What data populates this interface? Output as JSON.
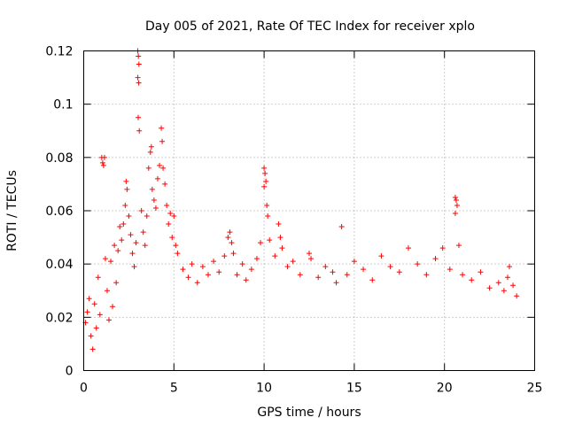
{
  "chart_data": {
    "type": "scatter",
    "title": "Day 005 of 2021, Rate Of TEC Index for receiver xplo",
    "xlabel": "GPS time / hours",
    "ylabel": "ROTI / TECUs",
    "xlim": [
      0,
      25
    ],
    "ylim": [
      0,
      0.12
    ],
    "xticks": [
      0,
      5,
      10,
      15,
      20,
      25
    ],
    "xtick_labels": [
      "0",
      "5",
      "10",
      "15",
      "20",
      "25"
    ],
    "yticks": [
      0,
      0.02,
      0.04,
      0.06,
      0.08,
      0.1,
      0.12
    ],
    "ytick_labels": [
      "0",
      "0.02",
      "0.04",
      "0.06",
      "0.08",
      "0.1",
      "0.12"
    ],
    "grid": true,
    "marker": "+",
    "color": "#ff0000",
    "series": [
      {
        "name": "",
        "points": [
          [
            0.1,
            0.018
          ],
          [
            0.2,
            0.022
          ],
          [
            0.3,
            0.027
          ],
          [
            0.4,
            0.013
          ],
          [
            0.5,
            0.008
          ],
          [
            0.6,
            0.025
          ],
          [
            0.7,
            0.016
          ],
          [
            0.8,
            0.035
          ],
          [
            0.9,
            0.021
          ],
          [
            1.0,
            0.08
          ],
          [
            1.05,
            0.078
          ],
          [
            1.1,
            0.077
          ],
          [
            1.15,
            0.08
          ],
          [
            1.2,
            0.042
          ],
          [
            1.3,
            0.03
          ],
          [
            1.4,
            0.019
          ],
          [
            1.5,
            0.041
          ],
          [
            1.6,
            0.024
          ],
          [
            1.7,
            0.047
          ],
          [
            1.8,
            0.033
          ],
          [
            1.9,
            0.045
          ],
          [
            2.0,
            0.054
          ],
          [
            2.1,
            0.049
          ],
          [
            2.2,
            0.055
          ],
          [
            2.3,
            0.062
          ],
          [
            2.35,
            0.071
          ],
          [
            2.4,
            0.068
          ],
          [
            2.5,
            0.058
          ],
          [
            2.6,
            0.051
          ],
          [
            2.7,
            0.044
          ],
          [
            2.8,
            0.039
          ],
          [
            2.9,
            0.048
          ],
          [
            3.0,
            0.12
          ],
          [
            3.03,
            0.118
          ],
          [
            3.06,
            0.115
          ],
          [
            3.0,
            0.11
          ],
          [
            3.05,
            0.108
          ],
          [
            3.02,
            0.095
          ],
          [
            3.08,
            0.09
          ],
          [
            3.2,
            0.06
          ],
          [
            3.3,
            0.052
          ],
          [
            3.4,
            0.047
          ],
          [
            3.5,
            0.058
          ],
          [
            3.6,
            0.076
          ],
          [
            3.7,
            0.082
          ],
          [
            3.75,
            0.084
          ],
          [
            3.8,
            0.068
          ],
          [
            3.9,
            0.064
          ],
          [
            4.0,
            0.061
          ],
          [
            4.1,
            0.072
          ],
          [
            4.2,
            0.077
          ],
          [
            4.3,
            0.091
          ],
          [
            4.35,
            0.086
          ],
          [
            4.4,
            0.076
          ],
          [
            4.5,
            0.07
          ],
          [
            4.6,
            0.062
          ],
          [
            4.7,
            0.055
          ],
          [
            4.8,
            0.059
          ],
          [
            4.9,
            0.05
          ],
          [
            5.0,
            0.058
          ],
          [
            5.1,
            0.047
          ],
          [
            5.2,
            0.044
          ],
          [
            5.5,
            0.038
          ],
          [
            5.8,
            0.035
          ],
          [
            6.0,
            0.04
          ],
          [
            6.3,
            0.033
          ],
          [
            6.6,
            0.039
          ],
          [
            6.9,
            0.036
          ],
          [
            7.2,
            0.041
          ],
          [
            7.5,
            0.037
          ],
          [
            7.8,
            0.043
          ],
          [
            8.0,
            0.05
          ],
          [
            8.1,
            0.052
          ],
          [
            8.2,
            0.048
          ],
          [
            8.3,
            0.044
          ],
          [
            8.5,
            0.036
          ],
          [
            8.8,
            0.04
          ],
          [
            9.0,
            0.034
          ],
          [
            9.3,
            0.038
          ],
          [
            9.6,
            0.042
          ],
          [
            9.8,
            0.048
          ],
          [
            10.0,
            0.076
          ],
          [
            10.05,
            0.074
          ],
          [
            10.1,
            0.071
          ],
          [
            10.0,
            0.069
          ],
          [
            10.15,
            0.062
          ],
          [
            10.2,
            0.058
          ],
          [
            10.3,
            0.049
          ],
          [
            10.6,
            0.043
          ],
          [
            10.8,
            0.055
          ],
          [
            10.9,
            0.05
          ],
          [
            11.0,
            0.046
          ],
          [
            11.3,
            0.039
          ],
          [
            11.6,
            0.041
          ],
          [
            12.0,
            0.036
          ],
          [
            12.5,
            0.044
          ],
          [
            12.6,
            0.042
          ],
          [
            13.0,
            0.035
          ],
          [
            13.4,
            0.039
          ],
          [
            13.8,
            0.037
          ],
          [
            14.0,
            0.033
          ],
          [
            14.3,
            0.054
          ],
          [
            14.6,
            0.036
          ],
          [
            15.0,
            0.041
          ],
          [
            15.5,
            0.038
          ],
          [
            16.0,
            0.034
          ],
          [
            16.5,
            0.043
          ],
          [
            17.0,
            0.039
          ],
          [
            17.5,
            0.037
          ],
          [
            18.0,
            0.046
          ],
          [
            18.5,
            0.04
          ],
          [
            19.0,
            0.036
          ],
          [
            19.5,
            0.042
          ],
          [
            19.9,
            0.046
          ],
          [
            20.3,
            0.038
          ],
          [
            20.6,
            0.065
          ],
          [
            20.65,
            0.064
          ],
          [
            20.7,
            0.062
          ],
          [
            20.6,
            0.059
          ],
          [
            20.8,
            0.047
          ],
          [
            21.0,
            0.036
          ],
          [
            21.5,
            0.034
          ],
          [
            22.0,
            0.037
          ],
          [
            22.5,
            0.031
          ],
          [
            23.0,
            0.033
          ],
          [
            23.3,
            0.03
          ],
          [
            23.5,
            0.035
          ],
          [
            23.6,
            0.039
          ],
          [
            23.8,
            0.032
          ],
          [
            24.0,
            0.028
          ]
        ]
      }
    ]
  }
}
